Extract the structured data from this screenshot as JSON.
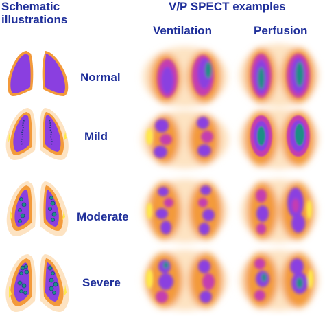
{
  "headers": {
    "schematic_line1": "Schematic",
    "schematic_line2": "illustrations",
    "spect_title": "V/P SPECT examples",
    "ventilation": "Ventilation",
    "perfusion": "Perfusion"
  },
  "rows": [
    {
      "label": "Normal"
    },
    {
      "label": "Mild"
    },
    {
      "label": "Moderate"
    },
    {
      "label": "Severe"
    }
  ],
  "colors": {
    "text": "#1f2f9a",
    "halo": "#fde3c2",
    "orange": "#f39a3a",
    "magenta": "#c43cb0",
    "violet": "#8a3fe0",
    "teal": "#1f8f86",
    "yellow": "#ffe94a"
  }
}
